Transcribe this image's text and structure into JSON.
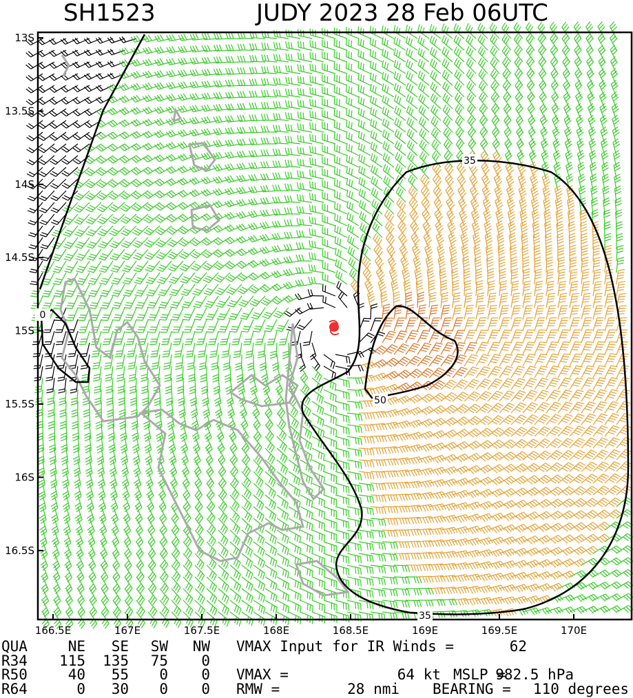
{
  "header": {
    "storm_id": "SH1523",
    "title": "JUDY 2023 28 Feb 06UTC"
  },
  "map": {
    "lat_labels": [
      "13S",
      "13.5S",
      "14S",
      "14.5S",
      "15S",
      "15.5S",
      "16S",
      "16.5S"
    ],
    "lon_labels": [
      "166.5E",
      "167E",
      "167.5E",
      "168E",
      "168.5E",
      "169E",
      "169.5E",
      "170E"
    ],
    "contour_labels": [
      "35",
      "50",
      "35",
      "0"
    ]
  },
  "table": {
    "header": [
      "QUA",
      "NE",
      "SE",
      "SW",
      "NW"
    ],
    "rows": [
      [
        "R34",
        "115",
        "135",
        "75",
        "0"
      ],
      [
        "R50",
        "40",
        "55",
        "0",
        "0"
      ],
      [
        "R64",
        "0",
        "30",
        "0",
        "0"
      ]
    ]
  },
  "info": [
    [
      "VMAX Input for IR Winds =",
      "62"
    ],
    [
      "VMAX =",
      "64 kt",
      "MSLP =",
      "982.5 hPa"
    ],
    [
      "RMW =",
      "28 nmi",
      "BEARING =",
      "110 degrees"
    ]
  ]
}
